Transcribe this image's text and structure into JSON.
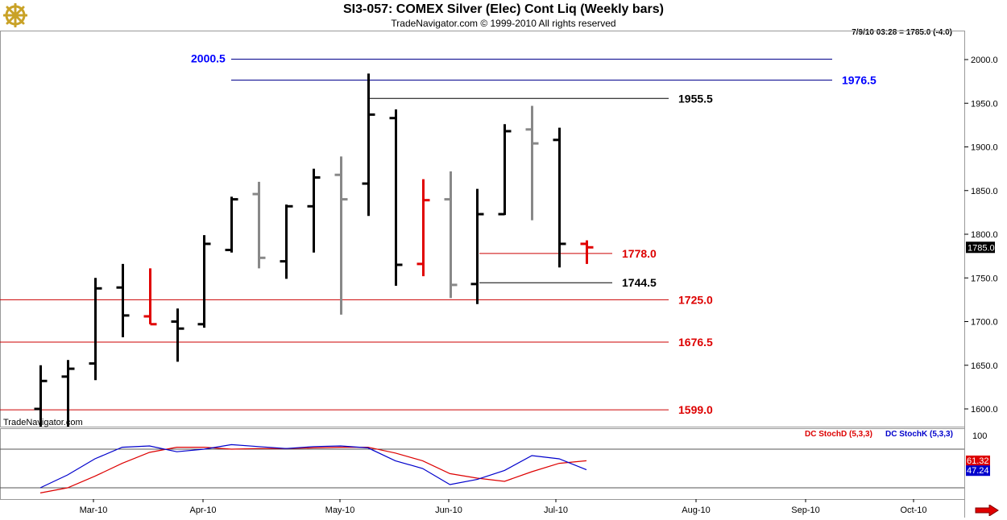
{
  "header": {
    "title": "SI3-057:  COMEX Silver (Elec) Cont Liq  (Weekly bars)",
    "subtitle": "TradeNavigator.com © 1999-2010 All rights reserved",
    "quote": "7/9/10 03:28 = 1785.0 (-4.0)"
  },
  "watermark": "TradeNavigator.com",
  "colors": {
    "bar_black": "#000000",
    "bar_gray": "#888888",
    "bar_red": "#e00000",
    "line_blue": "#00008b",
    "label_blue": "#0000ff",
    "line_red": "#cc0000",
    "label_red": "#dd0000",
    "stochD": "#dd0000",
    "stochK": "#0000cc"
  },
  "chart_data": {
    "type": "ohlc",
    "price_axis": {
      "ylim": [
        1575,
        2035
      ],
      "ticks": [
        "1600.0",
        "1650.0",
        "1700.0",
        "1750.0",
        "1800.0",
        "1850.0",
        "1900.0",
        "1950.0",
        "2000.0"
      ],
      "current_price": "1785.0"
    },
    "time_axis": {
      "labels": [
        "Mar-10",
        "Apr-10",
        "May-10",
        "Jun-10",
        "Jul-10",
        "Aug-10",
        "Sep-10",
        "Oct-10"
      ]
    },
    "bars": [
      {
        "week": "Feb-19-10",
        "o": 1600,
        "h": 1650,
        "l": 1575,
        "c": 1632,
        "color": "black"
      },
      {
        "week": "Feb-26-10",
        "o": 1637,
        "h": 1656,
        "l": 1577,
        "c": 1646,
        "color": "black"
      },
      {
        "week": "Mar-05-10",
        "o": 1652,
        "h": 1750,
        "l": 1633,
        "c": 1738,
        "color": "black"
      },
      {
        "week": "Mar-12-10",
        "o": 1739,
        "h": 1766,
        "l": 1682,
        "c": 1707,
        "color": "black"
      },
      {
        "week": "Mar-19-10",
        "o": 1706,
        "h": 1761,
        "l": 1697,
        "c": 1697,
        "color": "red"
      },
      {
        "week": "Mar-26-10",
        "o": 1700,
        "h": 1715,
        "l": 1654,
        "c": 1692,
        "color": "black"
      },
      {
        "week": "Apr-02-10",
        "o": 1697,
        "h": 1799,
        "l": 1693,
        "c": 1789,
        "color": "black"
      },
      {
        "week": "Apr-09-10",
        "o": 1782,
        "h": 1843,
        "l": 1779,
        "c": 1840,
        "color": "black"
      },
      {
        "week": "Apr-16-10",
        "o": 1846,
        "h": 1860,
        "l": 1761,
        "c": 1773,
        "color": "gray"
      },
      {
        "week": "Apr-23-10",
        "o": 1769,
        "h": 1834,
        "l": 1749,
        "c": 1832,
        "color": "black"
      },
      {
        "week": "Apr-30-10",
        "o": 1832,
        "h": 1875,
        "l": 1779,
        "c": 1865,
        "color": "black"
      },
      {
        "week": "May-07-10",
        "o": 1868,
        "h": 1889,
        "l": 1708,
        "c": 1840,
        "color": "gray"
      },
      {
        "week": "May-14-10",
        "o": 1858,
        "h": 1984,
        "l": 1821,
        "c": 1937,
        "color": "black"
      },
      {
        "week": "May-21-10",
        "o": 1933,
        "h": 1943,
        "l": 1741,
        "c": 1765,
        "color": "black"
      },
      {
        "week": "May-28-10",
        "o": 1766,
        "h": 1863,
        "l": 1752,
        "c": 1839,
        "color": "red"
      },
      {
        "week": "Jun-04-10",
        "o": 1840,
        "h": 1872,
        "l": 1727,
        "c": 1742,
        "color": "gray"
      },
      {
        "week": "Jun-11-10",
        "o": 1743,
        "h": 1852,
        "l": 1720,
        "c": 1823,
        "color": "black"
      },
      {
        "week": "Jun-18-10",
        "o": 1823,
        "h": 1926,
        "l": 1822,
        "c": 1918,
        "color": "black"
      },
      {
        "week": "Jun-25-10",
        "o": 1920,
        "h": 1947,
        "l": 1816,
        "c": 1904,
        "color": "gray"
      },
      {
        "week": "Jul-02-10",
        "o": 1908,
        "h": 1922,
        "l": 1762,
        "c": 1789,
        "color": "black"
      },
      {
        "week": "Jul-09-10",
        "o": 1789,
        "h": 1793,
        "l": 1766,
        "c": 1785,
        "color": "red"
      }
    ],
    "levels": [
      {
        "label": "2000.5",
        "value": 2000.5,
        "color": "blue",
        "label_side": "left"
      },
      {
        "label": "1976.5",
        "value": 1976.5,
        "color": "blue",
        "label_side": "right"
      },
      {
        "label": "1955.5",
        "value": 1955.5,
        "color": "black",
        "label_side": "right"
      },
      {
        "label": "1778.0",
        "value": 1778.0,
        "color": "red",
        "label_side": "right"
      },
      {
        "label": "1744.5",
        "value": 1744.5,
        "color": "black",
        "label_side": "right"
      },
      {
        "label": "1725.0",
        "value": 1725.0,
        "color": "red",
        "label_side": "right"
      },
      {
        "label": "1676.5",
        "value": 1676.5,
        "color": "red",
        "label_side": "right"
      },
      {
        "label": "1599.0",
        "value": 1599.0,
        "color": "red",
        "label_side": "right"
      }
    ],
    "stochastic": {
      "ylim": [
        0,
        100
      ],
      "axis_label": "100",
      "upper_line": 80,
      "lower_line": 20,
      "legend_d": "DC StochD (5,3,3)",
      "legend_k": "DC StochK (5,3,3)",
      "value_d": "61.32",
      "value_k": "47.24",
      "series": [
        {
          "name": "DC StochD (5,3,3)",
          "color": "red",
          "values": [
            12,
            20,
            38,
            58,
            75,
            83,
            83,
            80,
            81,
            81,
            82,
            83,
            83,
            74,
            62,
            42,
            35,
            30,
            45,
            58,
            62
          ]
        },
        {
          "name": "DC StochK (5,3,3)",
          "color": "blue",
          "values": [
            20,
            40,
            65,
            83,
            85,
            76,
            80,
            87,
            84,
            81,
            84,
            85,
            82,
            62,
            50,
            25,
            33,
            47,
            70,
            65,
            48
          ]
        }
      ]
    }
  }
}
